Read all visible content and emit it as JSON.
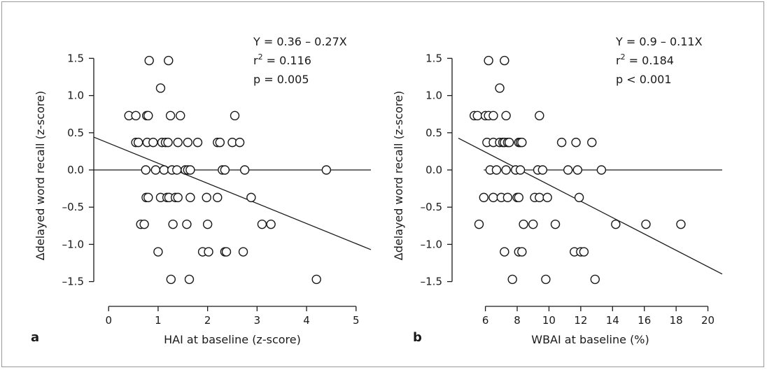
{
  "chart_data": [
    {
      "type": "scatter",
      "panel_label": "a",
      "xlabel": "HAI at baseline (z-score)",
      "ylabel": "Δdelayed word recall (z-score)",
      "xlim": [
        -0.3,
        5.3
      ],
      "ylim": [
        -1.72,
        1.72
      ],
      "xticks": [
        0,
        1,
        2,
        3,
        4,
        5
      ],
      "yticks": [
        1.5,
        1.0,
        0.5,
        0.0,
        -0.5,
        -1.0,
        -1.5
      ],
      "ytick_labels": [
        "1.5",
        "1.0",
        "0.5",
        "0.0",
        "–0.5",
        "–1.0",
        "–1.5"
      ],
      "regression": {
        "intercept": 0.36,
        "slope": -0.27
      },
      "zero_line": {
        "y": 0,
        "x_from": -0.3,
        "x_to": 5.3
      },
      "annotations": [
        "Y = 0.36 – 0.27X",
        "r² = 0.116",
        "p = 0.005"
      ],
      "points": [
        [
          0.82,
          1.47
        ],
        [
          1.21,
          1.47
        ],
        [
          1.05,
          1.1
        ],
        [
          0.41,
          0.73
        ],
        [
          0.55,
          0.73
        ],
        [
          0.77,
          0.73
        ],
        [
          0.8,
          0.73
        ],
        [
          1.25,
          0.73
        ],
        [
          1.45,
          0.73
        ],
        [
          2.55,
          0.73
        ],
        [
          0.55,
          0.37
        ],
        [
          0.6,
          0.37
        ],
        [
          0.78,
          0.37
        ],
        [
          0.9,
          0.37
        ],
        [
          1.08,
          0.37
        ],
        [
          1.15,
          0.37
        ],
        [
          1.2,
          0.37
        ],
        [
          1.4,
          0.37
        ],
        [
          1.6,
          0.37
        ],
        [
          1.8,
          0.37
        ],
        [
          2.2,
          0.37
        ],
        [
          2.25,
          0.37
        ],
        [
          2.5,
          0.37
        ],
        [
          2.65,
          0.37
        ],
        [
          0.75,
          0.0
        ],
        [
          0.95,
          0.0
        ],
        [
          1.12,
          0.0
        ],
        [
          1.28,
          0.0
        ],
        [
          1.38,
          0.0
        ],
        [
          1.55,
          0.0
        ],
        [
          1.6,
          0.0
        ],
        [
          1.65,
          0.0
        ],
        [
          2.3,
          0.0
        ],
        [
          2.35,
          0.0
        ],
        [
          2.75,
          0.0
        ],
        [
          4.4,
          0.0
        ],
        [
          0.76,
          -0.37
        ],
        [
          0.8,
          -0.37
        ],
        [
          1.05,
          -0.37
        ],
        [
          1.18,
          -0.37
        ],
        [
          1.22,
          -0.37
        ],
        [
          1.35,
          -0.37
        ],
        [
          1.4,
          -0.37
        ],
        [
          1.65,
          -0.37
        ],
        [
          1.98,
          -0.37
        ],
        [
          2.2,
          -0.37
        ],
        [
          2.88,
          -0.37
        ],
        [
          0.65,
          -0.73
        ],
        [
          0.72,
          -0.73
        ],
        [
          1.3,
          -0.73
        ],
        [
          1.58,
          -0.73
        ],
        [
          2.0,
          -0.73
        ],
        [
          3.1,
          -0.73
        ],
        [
          3.28,
          -0.73
        ],
        [
          1.0,
          -1.1
        ],
        [
          1.9,
          -1.1
        ],
        [
          2.02,
          -1.1
        ],
        [
          2.35,
          -1.1
        ],
        [
          2.38,
          -1.1
        ],
        [
          2.72,
          -1.1
        ],
        [
          1.26,
          -1.47
        ],
        [
          1.63,
          -1.47
        ],
        [
          4.2,
          -1.47
        ]
      ]
    },
    {
      "type": "scatter",
      "panel_label": "b",
      "xlabel": "WBAI at baseline (%)",
      "ylabel": "Δdelayed word recall (z-score)",
      "xlim": [
        4.3,
        20.9
      ],
      "ylim": [
        -1.72,
        1.72
      ],
      "xticks": [
        6,
        8,
        10,
        12,
        14,
        16,
        18,
        20
      ],
      "yticks": [
        1.5,
        1.0,
        0.5,
        0.0,
        -0.5,
        -1.0,
        -1.5
      ],
      "ytick_labels": [
        "1.5",
        "1.0",
        "0.5",
        "0.0",
        "–0.5",
        "–1.0",
        "–1.5"
      ],
      "regression": {
        "intercept": 0.9,
        "slope": -0.11
      },
      "zero_line": {
        "y": 0,
        "x_from": 5.9,
        "x_to": 20.9
      },
      "annotations": [
        "Y = 0.9 – 0.11X",
        "r² = 0.184",
        "p < 0.001"
      ],
      "points": [
        [
          6.2,
          1.47
        ],
        [
          7.2,
          1.47
        ],
        [
          6.9,
          1.1
        ],
        [
          5.3,
          0.73
        ],
        [
          5.5,
          0.73
        ],
        [
          6.0,
          0.73
        ],
        [
          6.2,
          0.73
        ],
        [
          6.5,
          0.73
        ],
        [
          7.3,
          0.73
        ],
        [
          9.4,
          0.73
        ],
        [
          6.1,
          0.37
        ],
        [
          6.5,
          0.37
        ],
        [
          6.9,
          0.37
        ],
        [
          7.1,
          0.37
        ],
        [
          7.2,
          0.37
        ],
        [
          7.4,
          0.37
        ],
        [
          7.5,
          0.37
        ],
        [
          8.1,
          0.37
        ],
        [
          8.2,
          0.37
        ],
        [
          8.3,
          0.37
        ],
        [
          10.8,
          0.37
        ],
        [
          11.7,
          0.37
        ],
        [
          12.7,
          0.37
        ],
        [
          6.3,
          0.0
        ],
        [
          6.7,
          0.0
        ],
        [
          7.3,
          0.0
        ],
        [
          7.9,
          0.0
        ],
        [
          8.2,
          0.0
        ],
        [
          9.3,
          0.0
        ],
        [
          9.6,
          0.0
        ],
        [
          11.2,
          0.0
        ],
        [
          11.8,
          0.0
        ],
        [
          13.3,
          0.0
        ],
        [
          5.9,
          -0.37
        ],
        [
          6.5,
          -0.37
        ],
        [
          7.0,
          -0.37
        ],
        [
          7.4,
          -0.37
        ],
        [
          8.0,
          -0.37
        ],
        [
          8.1,
          -0.37
        ],
        [
          9.1,
          -0.37
        ],
        [
          9.4,
          -0.37
        ],
        [
          9.9,
          -0.37
        ],
        [
          11.9,
          -0.37
        ],
        [
          5.6,
          -0.73
        ],
        [
          8.4,
          -0.73
        ],
        [
          9.0,
          -0.73
        ],
        [
          10.4,
          -0.73
        ],
        [
          14.2,
          -0.73
        ],
        [
          16.1,
          -0.73
        ],
        [
          18.3,
          -0.73
        ],
        [
          7.2,
          -1.1
        ],
        [
          8.1,
          -1.1
        ],
        [
          8.3,
          -1.1
        ],
        [
          11.6,
          -1.1
        ],
        [
          12.0,
          -1.1
        ],
        [
          12.2,
          -1.1
        ],
        [
          7.7,
          -1.47
        ],
        [
          9.8,
          -1.47
        ],
        [
          12.9,
          -1.47
        ]
      ]
    }
  ]
}
